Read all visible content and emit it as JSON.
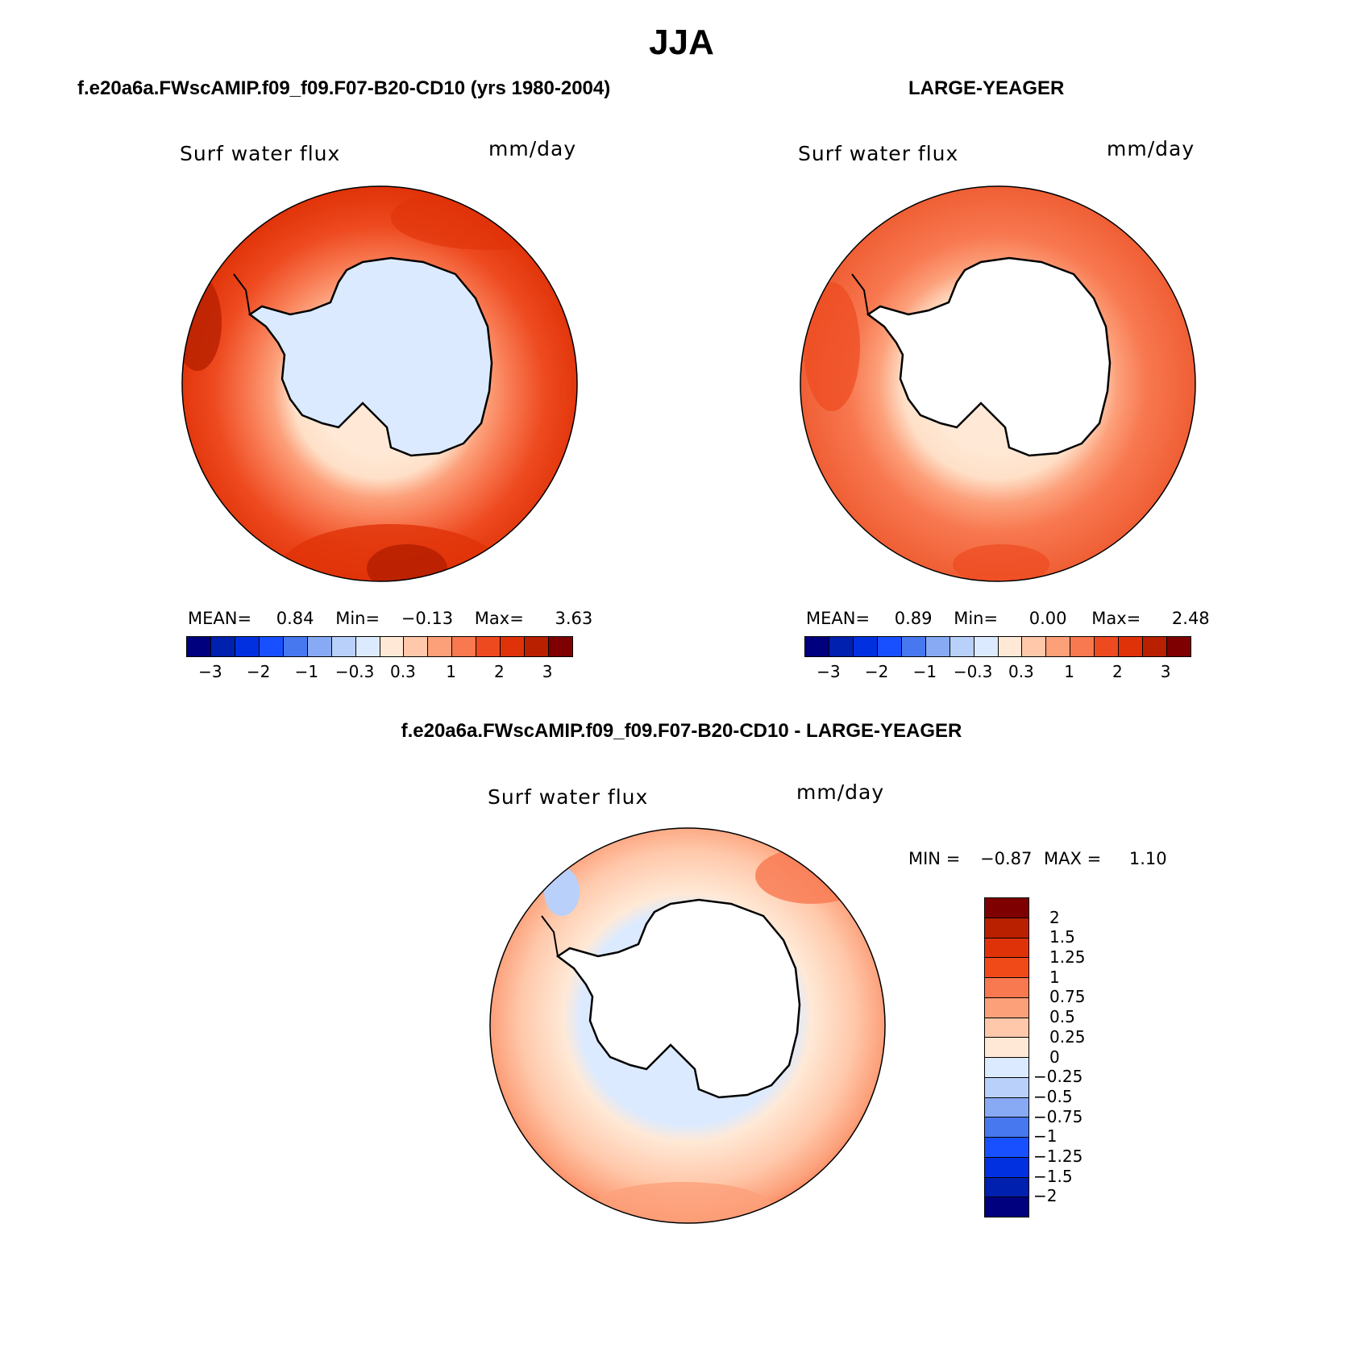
{
  "title": "JJA",
  "panels": [
    {
      "id": "model",
      "heading": "f.e20a6a.FWscAMIP.f09_f09.F07-B20-CD10 (yrs 1980-2004)",
      "variable": "Surf water flux",
      "units": "mm/day",
      "stats": {
        "mean_label": "MEAN=",
        "mean": "0.84",
        "min_label": "Min=",
        "min": "−0.13",
        "max_label": "Max=",
        "max": "3.63"
      }
    },
    {
      "id": "obs",
      "heading": "LARGE-YEAGER",
      "variable": "Surf water flux",
      "units": "mm/day",
      "stats": {
        "mean_label": "MEAN=",
        "mean": "0.89",
        "min_label": "Min=",
        "min": "0.00",
        "max_label": "Max=",
        "max": "2.48"
      }
    },
    {
      "id": "diff",
      "heading": "f.e20a6a.FWscAMIP.f09_f09.F07-B20-CD10 - LARGE-YEAGER",
      "variable": "Surf water flux",
      "units": "mm/day",
      "stats": {
        "min_label": "MIN =",
        "min": "−0.87",
        "max_label": "MAX =",
        "max": "1.10"
      }
    }
  ],
  "colorbar_abs": {
    "colors": [
      "#00007f",
      "#0020b0",
      "#0030e0",
      "#1850ff",
      "#4878f0",
      "#88aaf5",
      "#b8d0fa",
      "#dceaff",
      "#ffe9d6",
      "#ffc8aa",
      "#fca07a",
      "#f87850",
      "#ee4a20",
      "#e03208",
      "#b82000",
      "#7f0000"
    ],
    "ticks": [
      "−3",
      "−2",
      "−1",
      "−0.3",
      "0.3",
      "1",
      "2",
      "3"
    ]
  },
  "colorbar_diff": {
    "colors": [
      "#7f0000",
      "#b82000",
      "#e03208",
      "#f04a18",
      "#f87850",
      "#fca07a",
      "#ffc8aa",
      "#ffe9d6",
      "#dceaff",
      "#b8d0fa",
      "#88aaf5",
      "#4878f0",
      "#1850ff",
      "#0030e0",
      "#0020b0",
      "#00007f"
    ],
    "ticks": [
      "2",
      "1.5",
      "1.25",
      "1",
      "0.75",
      "0.5",
      "0.25",
      "0",
      "−0.25",
      "−0.5",
      "−0.75",
      "−1",
      "−1.25",
      "−1.5",
      "−2"
    ]
  },
  "colors": {
    "land_model": "#dceaff",
    "land_other": "#ffffff"
  }
}
